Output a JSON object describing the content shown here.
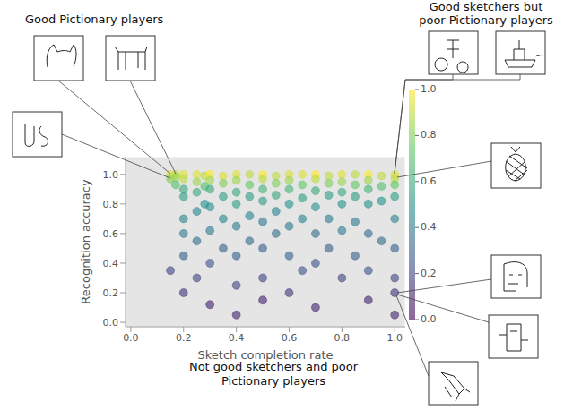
{
  "chart_data": {
    "type": "scatter",
    "x_label": "Sketch completion rate",
    "y_label": "Recognition accuracy",
    "annotations": [
      "Good Pictionary players",
      "Good sketchers but poor Pictionary players",
      "Not good sketchers and poor Pictionary players"
    ],
    "xlim": [
      -0.02,
      1.04
    ],
    "ylim": [
      -0.03,
      1.12
    ],
    "xticks": [
      {
        "value": 0,
        "label": "0.0"
      },
      0.2,
      0.4,
      0.6,
      0.8,
      {
        "value": 1,
        "label": "1.0"
      }
    ],
    "yticks": [
      {
        "value": 0,
        "label": "0.0"
      },
      0.2,
      0.4,
      0.6,
      0.8,
      {
        "value": 1,
        "label": "1.0"
      }
    ],
    "grid": true,
    "marker": "circle",
    "colorbar_range": [
      0,
      1
    ],
    "colorbar_ticks": [
      {
        "value": 0,
        "label": "0.0"
      },
      0.2,
      0.4,
      0.6,
      0.8,
      {
        "value": 1,
        "label": "1.0"
      }
    ],
    "x": [
      0.15,
      0.15,
      0.15,
      0.17,
      0.17,
      0.17,
      0.2,
      0.2,
      0.2,
      0.2,
      0.2,
      0.2,
      0.2,
      0.2,
      0.25,
      0.25,
      0.25,
      0.25,
      0.25,
      0.25,
      0.28,
      0.28,
      0.28,
      0.3,
      0.3,
      0.3,
      0.3,
      0.3,
      0.3,
      0.3,
      0.35,
      0.35,
      0.35,
      0.35,
      0.35,
      0.4,
      0.4,
      0.4,
      0.4,
      0.4,
      0.4,
      0.4,
      0.4,
      0.45,
      0.45,
      0.45,
      0.45,
      0.45,
      0.5,
      0.5,
      0.5,
      0.5,
      0.5,
      0.5,
      0.5,
      0.5,
      0.55,
      0.55,
      0.55,
      0.55,
      0.55,
      0.6,
      0.6,
      0.6,
      0.6,
      0.6,
      0.6,
      0.6,
      0.65,
      0.65,
      0.65,
      0.65,
      0.65,
      0.7,
      0.7,
      0.7,
      0.7,
      0.7,
      0.7,
      0.7,
      0.75,
      0.75,
      0.75,
      0.75,
      0.75,
      0.8,
      0.8,
      0.8,
      0.8,
      0.8,
      0.8,
      0.85,
      0.85,
      0.85,
      0.85,
      0.85,
      0.9,
      0.9,
      0.9,
      0.9,
      0.9,
      0.9,
      0.9,
      0.95,
      0.95,
      0.95,
      0.95,
      1.0,
      1.0,
      1.0,
      1.0,
      1.0,
      1.0,
      1.0,
      1.0,
      1.0
    ],
    "values": [
      1.0,
      0.97,
      0.35,
      1.0,
      0.98,
      0.93,
      1.0,
      0.97,
      0.9,
      0.85,
      0.7,
      0.6,
      0.45,
      0.2,
      1.0,
      0.95,
      0.88,
      0.75,
      0.55,
      0.3,
      0.99,
      0.92,
      0.8,
      1.0,
      0.96,
      0.9,
      0.78,
      0.62,
      0.4,
      0.12,
      0.99,
      0.94,
      0.85,
      0.7,
      0.5,
      1.0,
      0.96,
      0.88,
      0.8,
      0.65,
      0.45,
      0.25,
      0.05,
      1.0,
      0.93,
      0.85,
      0.72,
      0.55,
      1.0,
      0.97,
      0.9,
      0.82,
      0.68,
      0.5,
      0.3,
      0.15,
      0.99,
      0.94,
      0.86,
      0.75,
      0.6,
      1.0,
      0.96,
      0.9,
      0.8,
      0.65,
      0.45,
      0.2,
      1.0,
      0.93,
      0.84,
      0.7,
      0.35,
      1.0,
      0.97,
      0.89,
      0.78,
      0.6,
      0.4,
      0.1,
      0.99,
      0.94,
      0.86,
      0.7,
      0.5,
      1.0,
      0.95,
      0.88,
      0.8,
      0.62,
      0.3,
      1.0,
      0.93,
      0.85,
      0.68,
      0.45,
      1.0,
      0.96,
      0.9,
      0.8,
      0.6,
      0.35,
      0.15,
      0.99,
      0.92,
      0.82,
      0.55,
      1.0,
      0.97,
      0.93,
      0.85,
      0.7,
      0.5,
      0.3,
      0.2,
      0.05
    ],
    "color_values": [
      0.95,
      0.8,
      0.2,
      0.9,
      0.85,
      0.7,
      0.95,
      0.9,
      0.6,
      0.55,
      0.45,
      0.4,
      0.3,
      0.15,
      0.95,
      0.85,
      0.6,
      0.45,
      0.35,
      0.2,
      0.9,
      0.7,
      0.5,
      1.0,
      0.85,
      0.6,
      0.5,
      0.4,
      0.25,
      0.1,
      0.95,
      0.8,
      0.55,
      0.45,
      0.3,
      0.95,
      0.85,
      0.6,
      0.55,
      0.4,
      0.3,
      0.2,
      0.1,
      0.9,
      0.75,
      0.55,
      0.45,
      0.35,
      1.0,
      0.9,
      0.65,
      0.55,
      0.4,
      0.3,
      0.2,
      0.1,
      0.9,
      0.8,
      0.6,
      0.45,
      0.35,
      0.95,
      0.85,
      0.65,
      0.5,
      0.4,
      0.3,
      0.15,
      0.95,
      0.75,
      0.55,
      0.45,
      0.25,
      1.0,
      0.9,
      0.6,
      0.5,
      0.35,
      0.25,
      0.1,
      0.9,
      0.8,
      0.55,
      0.4,
      0.3,
      0.95,
      0.85,
      0.6,
      0.5,
      0.4,
      0.2,
      0.9,
      0.75,
      0.55,
      0.4,
      0.3,
      1.0,
      0.85,
      0.65,
      0.5,
      0.35,
      0.25,
      0.1,
      0.9,
      0.7,
      0.5,
      0.35,
      0.95,
      0.9,
      0.75,
      0.55,
      0.45,
      0.3,
      0.2,
      0.15,
      0.1
    ]
  }
}
